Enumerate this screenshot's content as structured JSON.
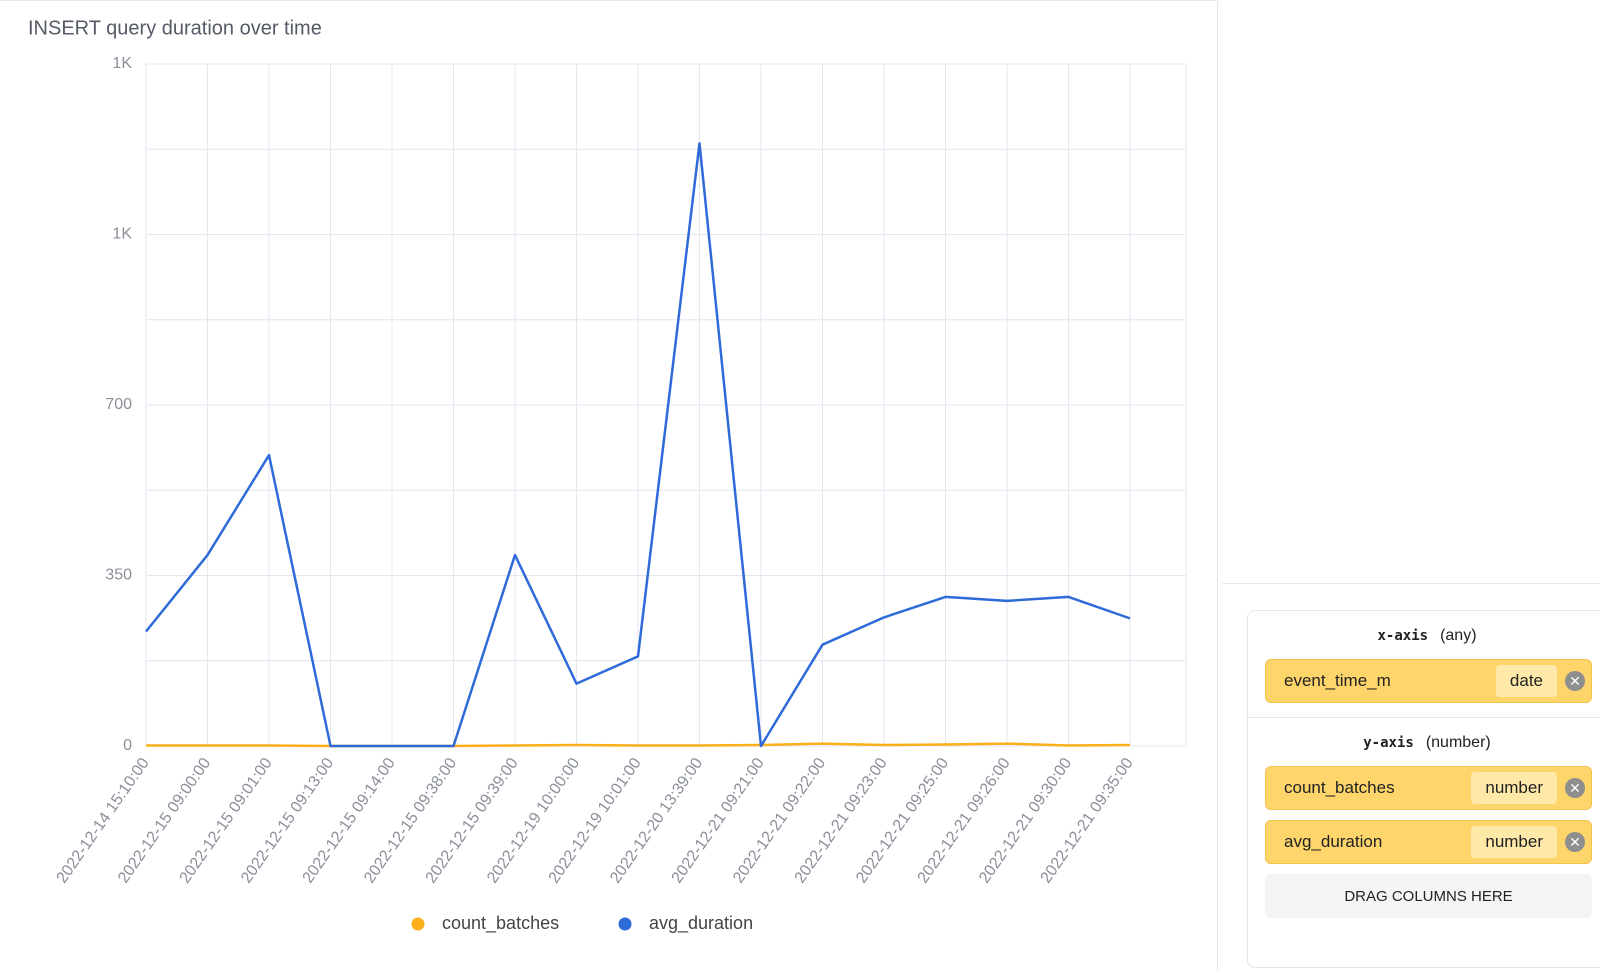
{
  "chart_data": {
    "type": "line",
    "title": "INSERT query duration over time",
    "categories": [
      "2022-12-14 15:10:00",
      "2022-12-15 09:00:00",
      "2022-12-15 09:01:00",
      "2022-12-15 09:13:00",
      "2022-12-15 09:14:00",
      "2022-12-15 09:38:00",
      "2022-12-15 09:39:00",
      "2022-12-19 10:00:00",
      "2022-12-19 10:01:00",
      "2022-12-20 13:39:00",
      "2022-12-21 09:21:00",
      "2022-12-21 09:22:00",
      "2022-12-21 09:23:00",
      "2022-12-21 09:25:00",
      "2022-12-21 09:26:00",
      "2022-12-21 09:30:00",
      "2022-12-21 09:35:00"
    ],
    "series": [
      {
        "name": "count_batches",
        "color": "#fbb01b",
        "values": [
          1,
          1,
          1,
          0,
          0,
          0,
          1,
          2,
          1,
          1,
          2,
          5,
          2,
          3,
          5,
          1,
          2
        ]
      },
      {
        "name": "avg_duration",
        "color": "#2f6bd8",
        "values": [
          235,
          392,
          597,
          0,
          0,
          0,
          392,
          128,
          184,
          1237,
          0,
          208,
          264,
          306,
          298,
          306,
          262
        ]
      }
    ],
    "ylim": [
      0,
      1400
    ],
    "yticks": [
      0,
      350,
      700,
      {
        "value": 1050,
        "label": "1K"
      },
      {
        "value": 1400,
        "label": "1K"
      }
    ],
    "minor_yticks": [
      175,
      525,
      875,
      1225
    ],
    "grid": true
  },
  "panel": {
    "x_axis": {
      "title": "x-axis",
      "hint": "(any)",
      "columns": [
        {
          "name": "event_time_m",
          "type": "date"
        }
      ]
    },
    "y_axis": {
      "title": "y-axis",
      "hint": "(number)",
      "columns": [
        {
          "name": "count_batches",
          "type": "number"
        },
        {
          "name": "avg_duration",
          "type": "number"
        }
      ]
    },
    "drop_hint": "DRAG COLUMNS HERE"
  }
}
